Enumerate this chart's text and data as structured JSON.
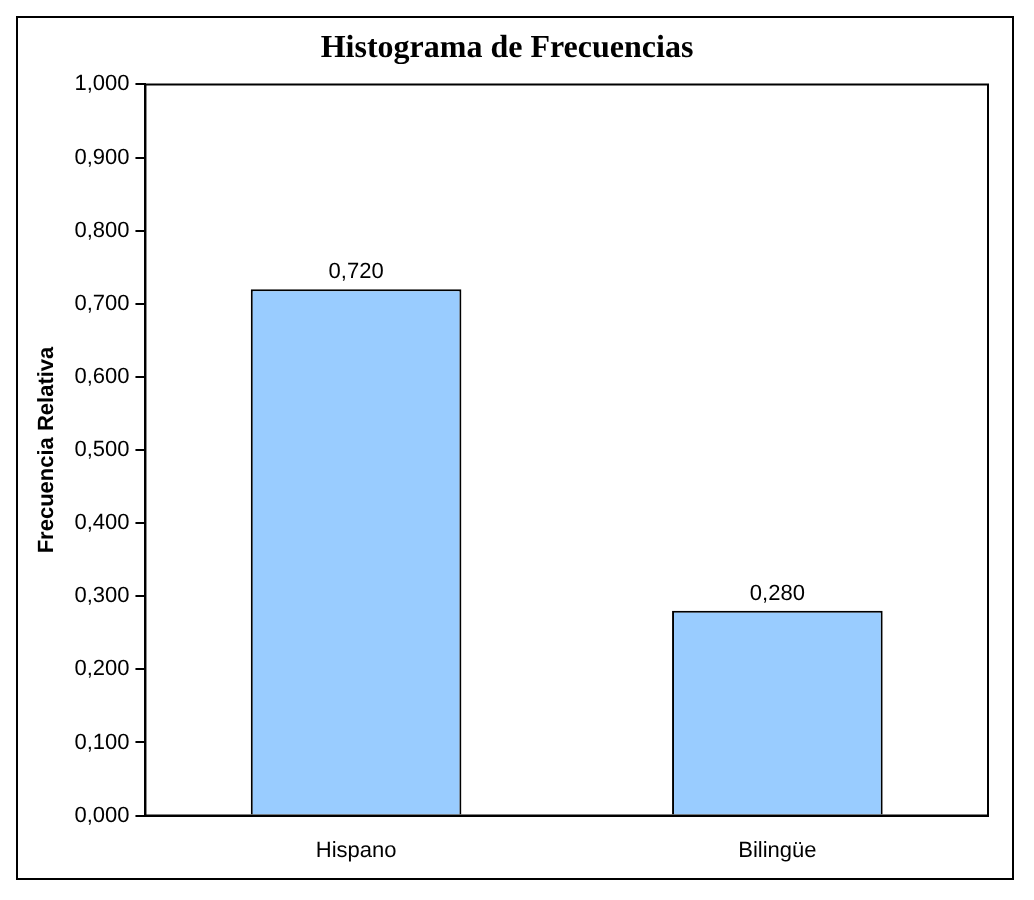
{
  "chart_data": {
    "type": "bar",
    "title": "Histograma de Frecuencias",
    "ylabel": "Frecuencia Relativa",
    "categories": [
      "Hispano",
      "Bilingüe"
    ],
    "values": [
      0.72,
      0.28
    ],
    "value_labels": [
      "0,720",
      "0,280"
    ],
    "color": "#99ccff",
    "ylim": [
      0,
      1
    ],
    "yticks": [
      {
        "value": 0,
        "label": "0,000"
      },
      {
        "value": 0.1,
        "label": "0,100"
      },
      {
        "value": 0.2,
        "label": "0,200"
      },
      {
        "value": 0.3,
        "label": "0,300"
      },
      {
        "value": 0.4,
        "label": "0,400"
      },
      {
        "value": 0.5,
        "label": "0,500"
      },
      {
        "value": 0.6,
        "label": "0,600"
      },
      {
        "value": 0.7,
        "label": "0,700"
      },
      {
        "value": 0.8,
        "label": "0,800"
      },
      {
        "value": 0.9,
        "label": "0,900"
      },
      {
        "value": 1,
        "label": "1,000"
      }
    ],
    "grid": false,
    "legend": false
  }
}
